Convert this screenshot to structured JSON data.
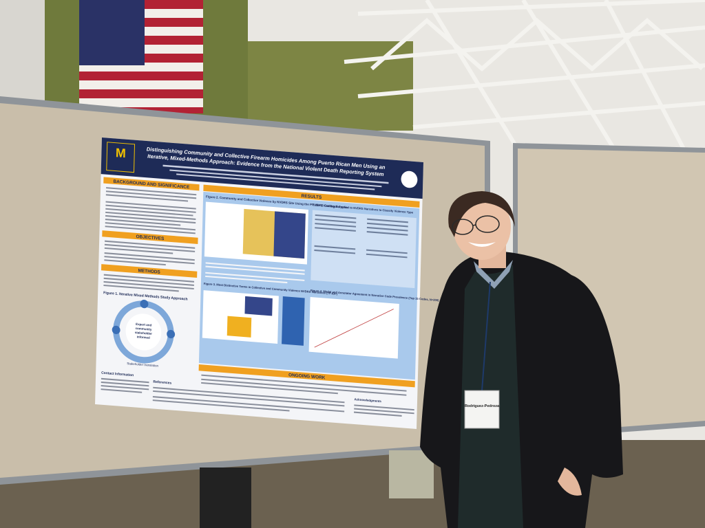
{
  "poster": {
    "title": [
      "Distinguishing Community and Collective Firearm Homicides Among Puerto Rican Men Using an",
      "Iterative, Mixed-Methods Approach: Evidence from the National Violent Death Reporting System"
    ],
    "sections": {
      "background": "BACKGROUND AND SIGNIFICANCE",
      "objectives": "OBJECTIVES",
      "methods": "METHODS",
      "results": "RESULTS",
      "ongoing": "ONGOING WORK"
    },
    "figures": {
      "fig1": "Figure 1. Iterative Mixed Methods Study Approach",
      "fig2": "Figure 2. Community and Collective Violence by NVDRS Site Using the PR VDRS Coding Schema",
      "fig3": "Figure 3. Most Distinctive Terms in Collective and Community Violence NVDRS Narratives (TF-IDF)",
      "fig4": "Figure 4. Model and Annotator Agreement in Narrative Code Prevalence (Top 15 Codes, N=200)",
      "table1": "Table 1. Codebook Applied to NVDRS Narratives to Classify Violence Type"
    },
    "diagram": {
      "center": [
        "Expert and",
        "community",
        "stakeholder",
        "informed"
      ],
      "bottom": "Stakeholder translation"
    },
    "footer": {
      "contact": "Contact Information",
      "references": "References",
      "acknowledgments": "Acknowledgments"
    }
  },
  "badge": {
    "name": "Rodriguez-Pedroza"
  }
}
